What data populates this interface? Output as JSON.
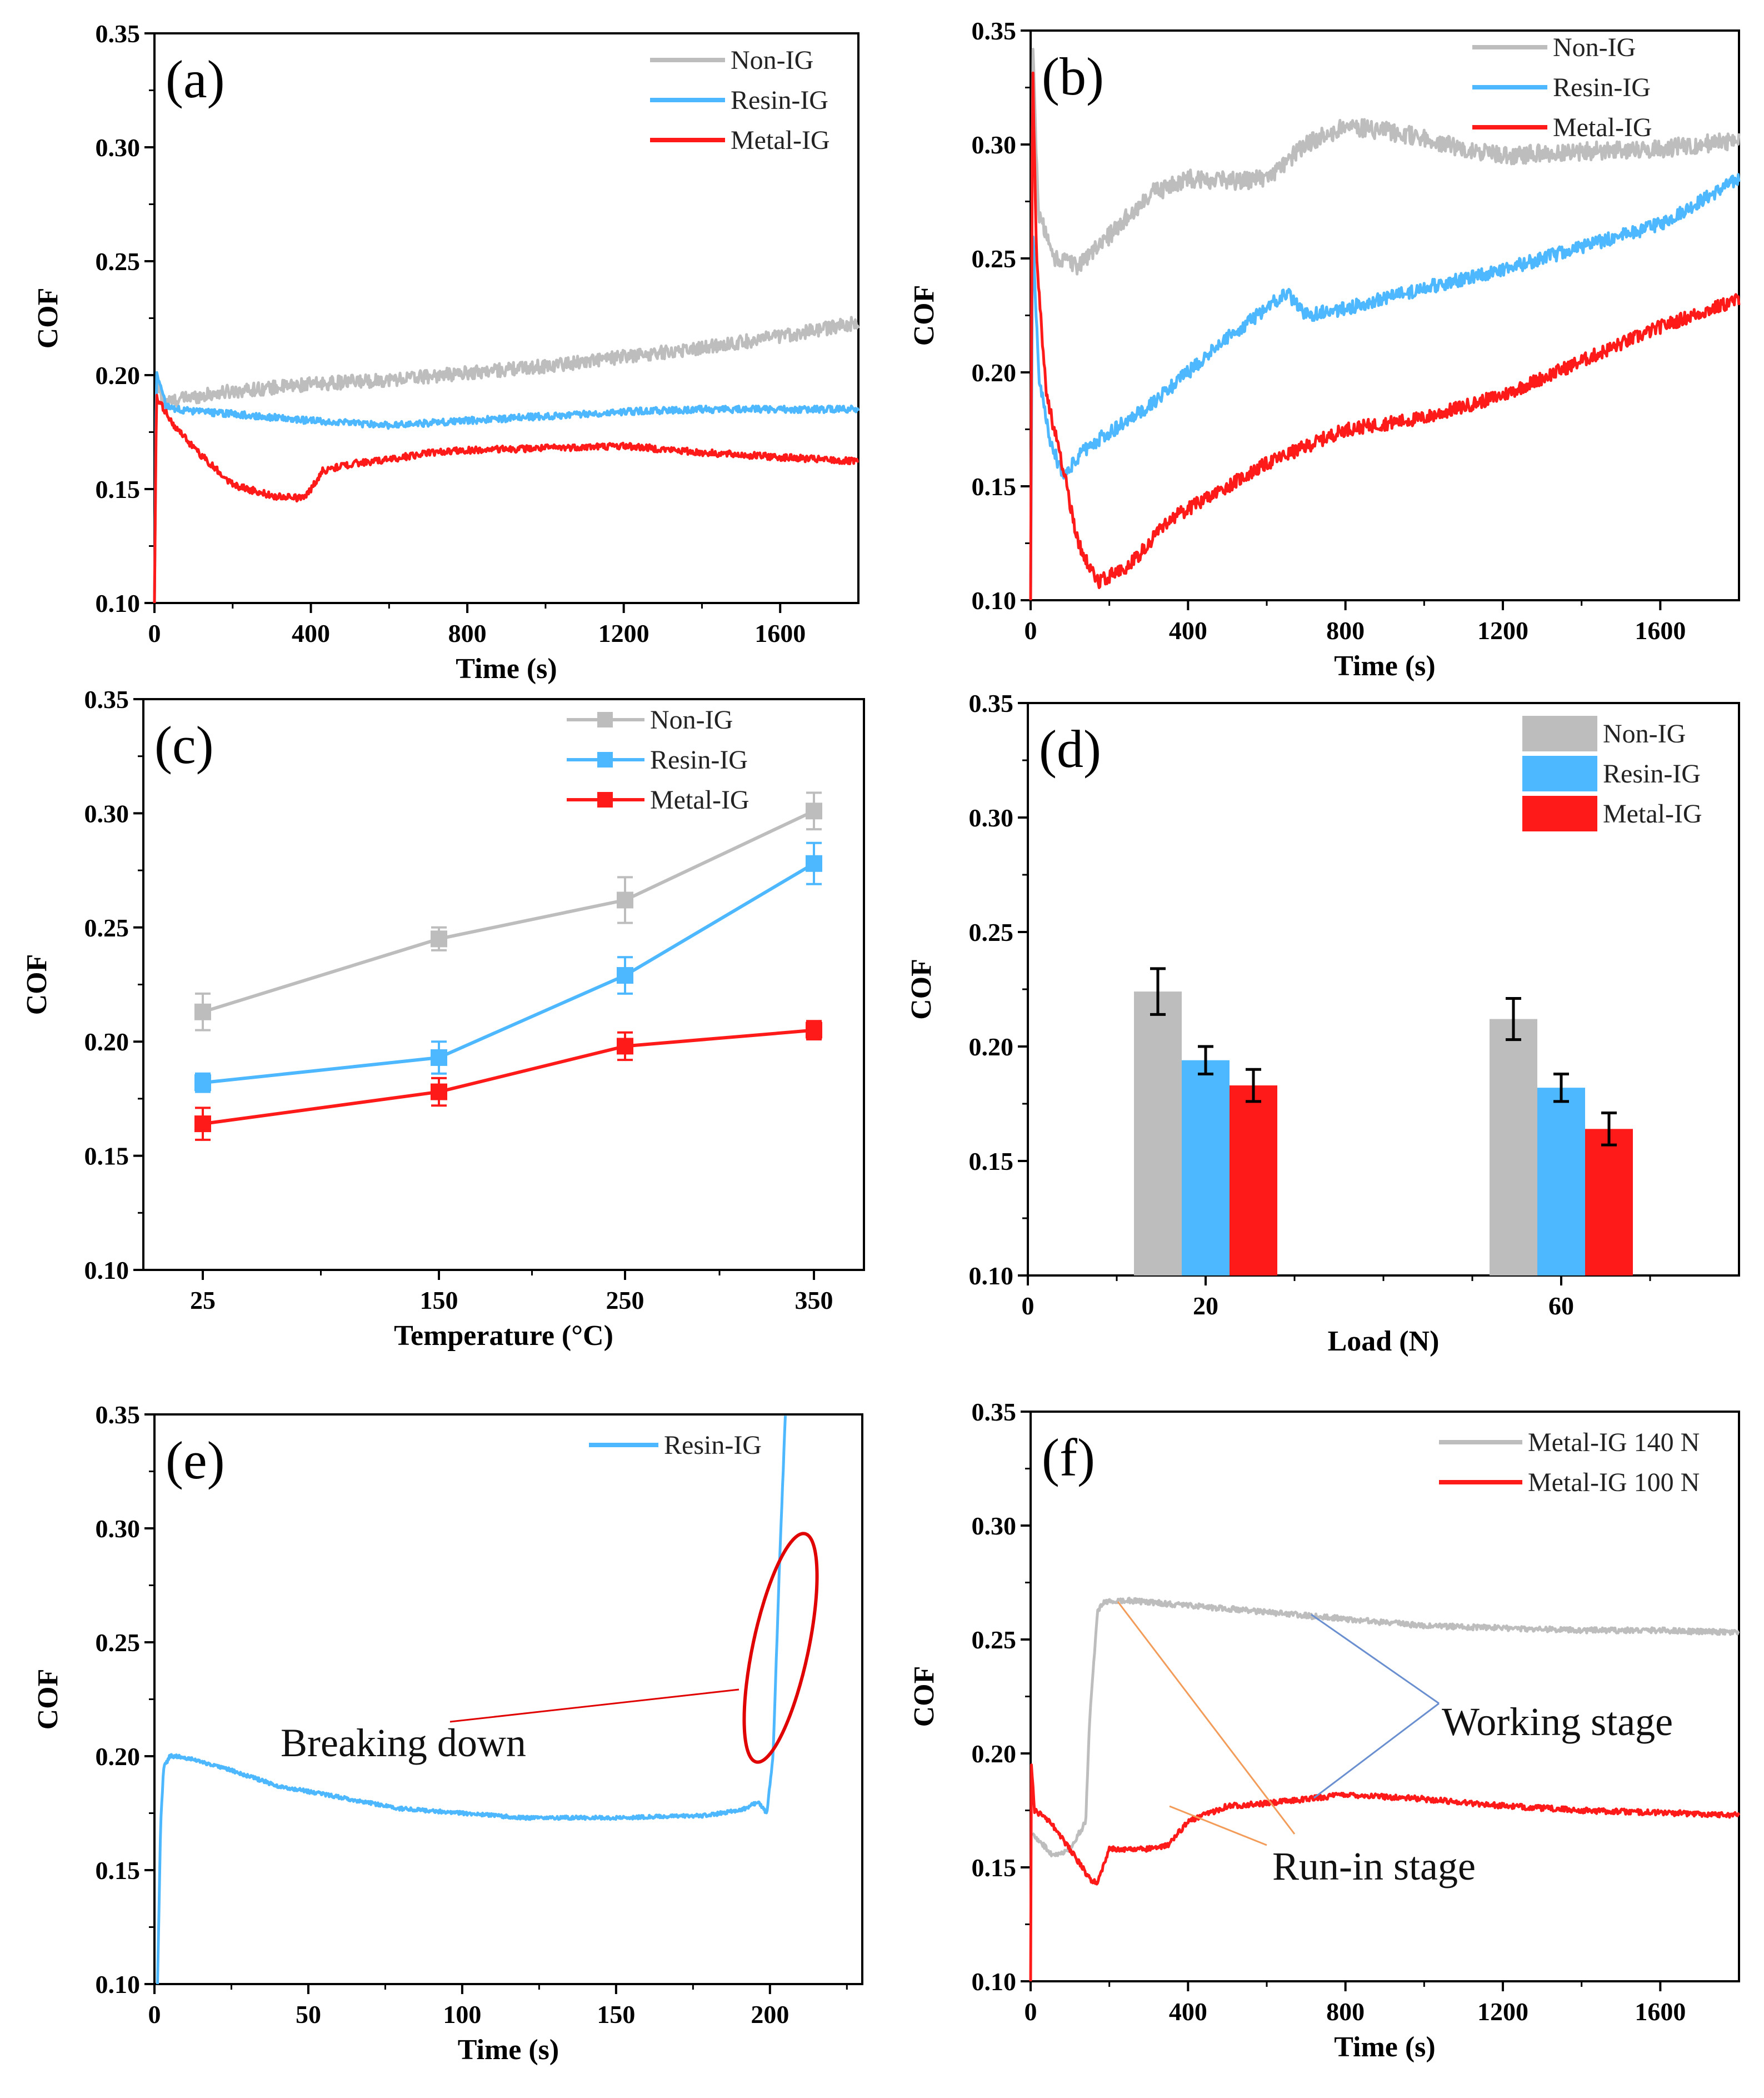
{
  "figure": {
    "colors": {
      "non_ig": "#bdbdbd",
      "resin_ig": "#4db8ff",
      "metal_ig": "#ff1a1a",
      "axis": "#000000",
      "leader_blue": "#6a8fd0",
      "leader_orange": "#f39c5a",
      "ellipse": "#e00000"
    }
  },
  "chart_data": [
    {
      "id": "a",
      "type": "line",
      "label": "(a)",
      "xlabel": "Time (s)",
      "ylabel": "COF",
      "xlim": [
        0,
        1800
      ],
      "ylim": [
        0.1,
        0.35
      ],
      "xticks": [
        0,
        400,
        800,
        1200,
        1600
      ],
      "xtick_labels": [
        "0",
        "400",
        "800",
        "1200",
        "1600"
      ],
      "yticks": [
        0.1,
        0.15,
        0.2,
        0.25,
        0.3,
        0.35
      ],
      "ytick_labels": [
        "0.10",
        "0.15",
        "0.20",
        "0.25",
        "0.30",
        "0.35"
      ],
      "legend": [
        "Non-IG",
        "Resin-IG",
        "Metal-IG"
      ],
      "series": [
        {
          "name": "Non-IG",
          "color": "#bdbdbd",
          "noise": 0.003,
          "x": [
            0,
            5,
            30,
            80,
            200,
            400,
            600,
            800,
            1000,
            1200,
            1400,
            1600,
            1800
          ],
          "y": [
            0.1,
            0.195,
            0.188,
            0.19,
            0.193,
            0.196,
            0.198,
            0.201,
            0.204,
            0.208,
            0.212,
            0.217,
            0.223
          ]
        },
        {
          "name": "Resin-IG",
          "color": "#4db8ff",
          "noise": 0.0015,
          "x": [
            0,
            5,
            30,
            100,
            200,
            400,
            600,
            800,
            1000,
            1200,
            1400,
            1600,
            1800
          ],
          "y": [
            0.1,
            0.202,
            0.186,
            0.184,
            0.183,
            0.18,
            0.178,
            0.18,
            0.182,
            0.184,
            0.185,
            0.185,
            0.185
          ]
        },
        {
          "name": "Metal-IG",
          "color": "#ff1a1a",
          "noise": 0.0015,
          "x": [
            0,
            5,
            50,
            100,
            200,
            300,
            380,
            400,
            430,
            500,
            600,
            700,
            800,
            1000,
            1200,
            1400,
            1600,
            1800
          ],
          "y": [
            0.1,
            0.19,
            0.178,
            0.168,
            0.152,
            0.147,
            0.146,
            0.15,
            0.158,
            0.161,
            0.163,
            0.166,
            0.167,
            0.168,
            0.169,
            0.166,
            0.164,
            0.162
          ]
        }
      ]
    },
    {
      "id": "b",
      "type": "line",
      "label": "(b)",
      "xlabel": "Time (s)",
      "ylabel": "COF",
      "xlim": [
        0,
        1800
      ],
      "ylim": [
        0.1,
        0.35
      ],
      "xticks": [
        0,
        400,
        800,
        1200,
        1600
      ],
      "xtick_labels": [
        "0",
        "400",
        "800",
        "1200",
        "1600"
      ],
      "yticks": [
        0.1,
        0.15,
        0.2,
        0.25,
        0.3,
        0.35
      ],
      "ytick_labels": [
        "0.10",
        "0.15",
        "0.20",
        "0.25",
        "0.30",
        "0.35"
      ],
      "legend": [
        "Non-IG",
        "Resin-IG",
        "Metal-IG"
      ],
      "series": [
        {
          "name": "Non-IG",
          "color": "#bdbdbd",
          "noise": 0.004,
          "x": [
            0,
            5,
            20,
            60,
            120,
            200,
            300,
            400,
            500,
            600,
            700,
            800,
            900,
            1000,
            1100,
            1200,
            1400,
            1600,
            1800
          ],
          "y": [
            0.1,
            0.345,
            0.27,
            0.25,
            0.247,
            0.26,
            0.278,
            0.285,
            0.284,
            0.285,
            0.3,
            0.308,
            0.306,
            0.303,
            0.298,
            0.295,
            0.297,
            0.298,
            0.302
          ]
        },
        {
          "name": "Resin-IG",
          "color": "#4db8ff",
          "noise": 0.003,
          "x": [
            0,
            5,
            20,
            50,
            80,
            150,
            300,
            500,
            650,
            700,
            800,
            1000,
            1200,
            1400,
            1600,
            1800
          ],
          "y": [
            0.1,
            0.265,
            0.2,
            0.17,
            0.155,
            0.168,
            0.185,
            0.215,
            0.235,
            0.225,
            0.228,
            0.237,
            0.245,
            0.255,
            0.265,
            0.285
          ]
        },
        {
          "name": "Metal-IG",
          "color": "#ff1a1a",
          "noise": 0.003,
          "x": [
            0,
            5,
            15,
            40,
            80,
            120,
            170,
            250,
            350,
            400,
            600,
            800,
            1000,
            1200,
            1400,
            1600,
            1800
          ],
          "y": [
            0.1,
            0.338,
            0.25,
            0.19,
            0.16,
            0.125,
            0.108,
            0.115,
            0.135,
            0.14,
            0.16,
            0.175,
            0.18,
            0.19,
            0.205,
            0.22,
            0.232
          ]
        }
      ]
    },
    {
      "id": "c",
      "type": "line",
      "label": "(c)",
      "xlabel": "Temperature (°C)",
      "ylabel": "COF",
      "ylim": [
        0.1,
        0.35
      ],
      "categories": [
        "25",
        "150",
        "250",
        "350"
      ],
      "yticks": [
        0.1,
        0.15,
        0.2,
        0.25,
        0.3,
        0.35
      ],
      "ytick_labels": [
        "0.10",
        "0.15",
        "0.20",
        "0.25",
        "0.30",
        "0.35"
      ],
      "legend": [
        "Non-IG",
        "Resin-IG",
        "Metal-IG"
      ],
      "series": [
        {
          "name": "Non-IG",
          "color": "#bdbdbd",
          "values": [
            0.213,
            0.245,
            0.262,
            0.301
          ],
          "errors": [
            0.008,
            0.005,
            0.01,
            0.008
          ]
        },
        {
          "name": "Resin-IG",
          "color": "#4db8ff",
          "values": [
            0.182,
            0.193,
            0.229,
            0.278
          ],
          "errors": [
            0.004,
            0.007,
            0.008,
            0.009
          ]
        },
        {
          "name": "Metal-IG",
          "color": "#ff1a1a",
          "values": [
            0.164,
            0.178,
            0.198,
            0.205
          ],
          "errors": [
            0.007,
            0.006,
            0.006,
            0.004
          ]
        }
      ]
    },
    {
      "id": "d",
      "type": "bar",
      "label": "(d)",
      "xlabel": "Load (N)",
      "ylabel": "COF",
      "ylim": [
        0.1,
        0.35
      ],
      "xticks": [
        0,
        20,
        60
      ],
      "xtick_labels": [
        "0",
        "20",
        "60"
      ],
      "categories": [
        "20",
        "60"
      ],
      "yticks": [
        0.1,
        0.15,
        0.2,
        0.25,
        0.3,
        0.35
      ],
      "ytick_labels": [
        "0.10",
        "0.15",
        "0.20",
        "0.25",
        "0.30",
        "0.35"
      ],
      "legend": [
        "Non-IG",
        "Resin-IG",
        "Metal-IG"
      ],
      "series": [
        {
          "name": "Non-IG",
          "color": "#bdbdbd",
          "values": [
            0.224,
            0.212
          ],
          "errors": [
            0.01,
            0.009
          ]
        },
        {
          "name": "Resin-IG",
          "color": "#4db8ff",
          "values": [
            0.194,
            0.182
          ],
          "errors": [
            0.006,
            0.006
          ]
        },
        {
          "name": "Metal-IG",
          "color": "#ff1a1a",
          "values": [
            0.183,
            0.164
          ],
          "errors": [
            0.007,
            0.007
          ]
        }
      ]
    },
    {
      "id": "e",
      "type": "line",
      "label": "(e)",
      "xlabel": "Time (s)",
      "ylabel": "COF",
      "xlim": [
        0,
        230
      ],
      "ylim": [
        0.1,
        0.35
      ],
      "xticks": [
        0,
        50,
        100,
        150,
        200
      ],
      "xtick_labels": [
        "0",
        "50",
        "100",
        "150",
        "200"
      ],
      "yticks": [
        0.1,
        0.15,
        0.2,
        0.25,
        0.3,
        0.35
      ],
      "ytick_labels": [
        "0.10",
        "0.15",
        "0.20",
        "0.25",
        "0.30",
        "0.35"
      ],
      "legend": [
        "Resin-IG"
      ],
      "annotation": "Breaking down",
      "series": [
        {
          "name": "Resin-IG",
          "color": "#4db8ff",
          "noise": 0.0008,
          "x": [
            1,
            2,
            3,
            5,
            8,
            20,
            40,
            60,
            80,
            100,
            120,
            150,
            180,
            192,
            196,
            199,
            201,
            203,
            205
          ],
          "y": [
            0.1,
            0.17,
            0.195,
            0.2,
            0.2,
            0.196,
            0.187,
            0.182,
            0.177,
            0.175,
            0.173,
            0.173,
            0.174,
            0.177,
            0.18,
            0.175,
            0.2,
            0.28,
            0.35
          ]
        }
      ]
    },
    {
      "id": "f",
      "type": "line",
      "label": "(f)",
      "xlabel": "Time (s)",
      "ylabel": "COF",
      "xlim": [
        0,
        1800
      ],
      "ylim": [
        0.1,
        0.35
      ],
      "xticks": [
        0,
        400,
        800,
        1200,
        1600
      ],
      "xtick_labels": [
        "0",
        "400",
        "800",
        "1200",
        "1600"
      ],
      "yticks": [
        0.1,
        0.15,
        0.2,
        0.25,
        0.3,
        0.35
      ],
      "ytick_labels": [
        "0.10",
        "0.15",
        "0.20",
        "0.25",
        "0.30",
        "0.35"
      ],
      "legend": [
        "Metal-IG 140 N",
        "Metal-IG 100 N"
      ],
      "annotations": [
        "Working stage",
        "Run-in stage"
      ],
      "series": [
        {
          "name": "Metal-IG 140 N",
          "color": "#bdbdbd",
          "noise": 0.0012,
          "x": [
            5,
            30,
            60,
            100,
            140,
            150,
            170,
            185,
            200,
            250,
            400,
            600,
            800,
            1000,
            1200,
            1400,
            1600,
            1800
          ],
          "y": [
            0.165,
            0.16,
            0.155,
            0.158,
            0.17,
            0.215,
            0.262,
            0.266,
            0.267,
            0.267,
            0.265,
            0.262,
            0.259,
            0.256,
            0.255,
            0.254,
            0.254,
            0.253
          ]
        },
        {
          "name": "Metal-IG 100 N",
          "color": "#ff1a1a",
          "noise": 0.0012,
          "x": [
            0,
            2,
            10,
            50,
            100,
            150,
            170,
            200,
            300,
            350,
            400,
            500,
            600,
            700,
            800,
            1000,
            1200,
            1400,
            1600,
            1800
          ],
          "y": [
            0.1,
            0.195,
            0.175,
            0.17,
            0.158,
            0.145,
            0.143,
            0.158,
            0.158,
            0.16,
            0.17,
            0.177,
            0.178,
            0.18,
            0.182,
            0.18,
            0.177,
            0.175,
            0.174,
            0.173
          ]
        }
      ]
    }
  ]
}
